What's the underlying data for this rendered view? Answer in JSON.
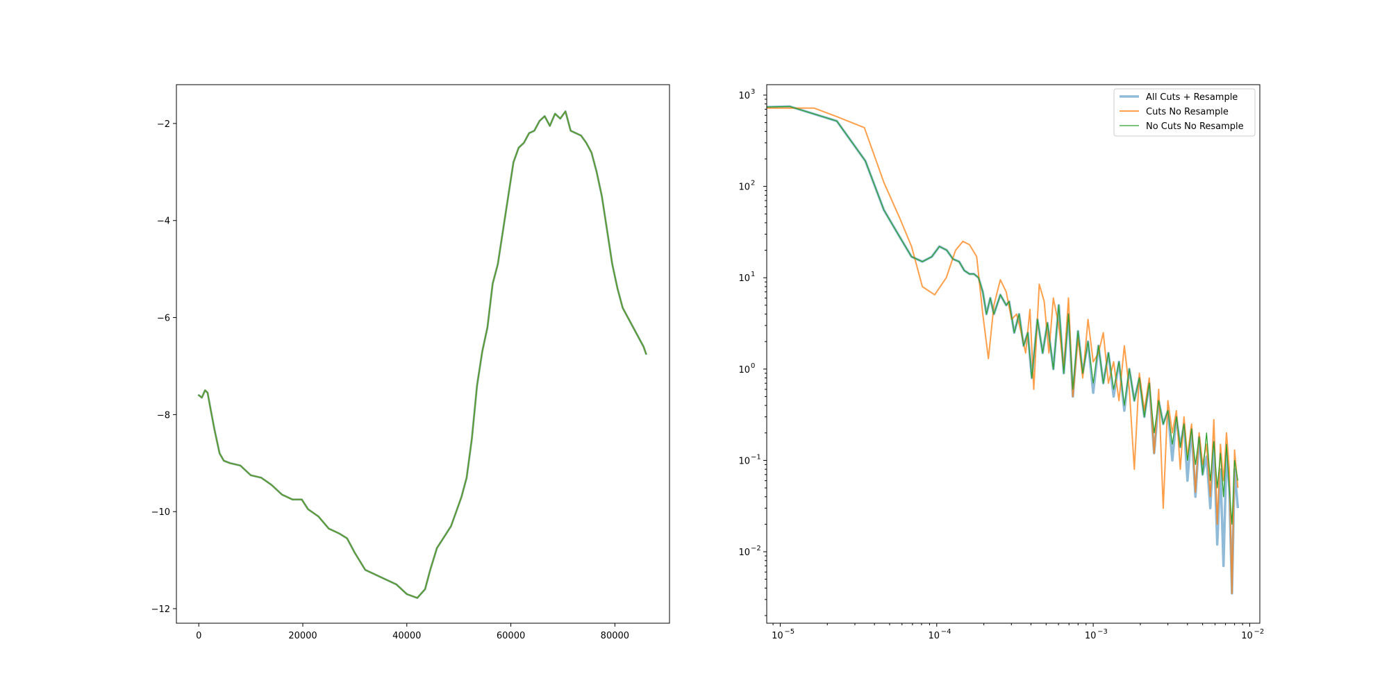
{
  "chart_data": [
    {
      "type": "line",
      "title": "",
      "xlabel": "",
      "ylabel": "",
      "xlim": [
        -4300,
        90500
      ],
      "ylim": [
        -12.3,
        -1.2
      ],
      "xticks": [
        0,
        20000,
        40000,
        60000,
        80000
      ],
      "xtick_labels": [
        "0",
        "20000",
        "40000",
        "60000",
        "80000"
      ],
      "yticks": [
        -12,
        -10,
        -8,
        -6,
        -4,
        -2
      ],
      "ytick_labels": [
        "−12",
        "−10",
        "−8",
        "−6",
        "−4",
        "−2"
      ],
      "grid": false,
      "series": [
        {
          "color": "#1f77b4",
          "alpha": 0.5,
          "linewidth": 3,
          "x": [
            0,
            600,
            1200,
            1700,
            2300,
            3000,
            4000,
            4800,
            6000,
            8000,
            10000,
            12000,
            14000,
            16000,
            18000,
            19800,
            21000,
            23000,
            25000,
            27000,
            28500,
            30000,
            32000,
            34000,
            36000,
            38000,
            40000,
            42000,
            43500,
            44500,
            45800,
            47000,
            48500,
            49500,
            50500,
            51500,
            52500,
            53500,
            54500,
            55500,
            56500,
            57500,
            58500,
            59500,
            60500,
            61500,
            62500,
            63500,
            64500,
            65500,
            66500,
            67500,
            68500,
            69500,
            70500,
            71500,
            72500,
            73500,
            74500,
            75500,
            76500,
            77500,
            78500,
            79500,
            80500,
            81500,
            82500,
            83500,
            84500,
            85500,
            86000
          ],
          "y": [
            -7.6,
            -7.65,
            -7.5,
            -7.55,
            -7.9,
            -8.3,
            -8.8,
            -8.95,
            -9.0,
            -9.05,
            -9.25,
            -9.3,
            -9.45,
            -9.65,
            -9.75,
            -9.75,
            -9.95,
            -10.1,
            -10.35,
            -10.45,
            -10.55,
            -10.85,
            -11.2,
            -11.3,
            -11.4,
            -11.5,
            -11.7,
            -11.78,
            -11.6,
            -11.2,
            -10.75,
            -10.55,
            -10.3,
            -10.0,
            -9.7,
            -9.3,
            -8.5,
            -7.4,
            -6.7,
            -6.2,
            -5.3,
            -4.9,
            -4.2,
            -3.5,
            -2.8,
            -2.5,
            -2.4,
            -2.2,
            -2.15,
            -1.95,
            -1.85,
            -2.05,
            -1.8,
            -1.9,
            -1.75,
            -2.15,
            -2.2,
            -2.25,
            -2.4,
            -2.6,
            -3.0,
            -3.5,
            -4.2,
            -4.9,
            -5.4,
            -5.8,
            -6.0,
            -6.2,
            -6.4,
            -6.6,
            -6.75
          ]
        },
        {
          "color": "#ff7f0e",
          "alpha": 0.75,
          "linewidth": 2,
          "x": [
            0,
            600,
            1200,
            1700,
            2300,
            3000,
            4000,
            4800,
            6000,
            8000,
            10000,
            12000,
            14000,
            16000,
            18000,
            19800,
            21000,
            23000,
            25000,
            27000,
            28500,
            30000,
            32000,
            34000,
            36000,
            38000,
            40000,
            42000,
            43500,
            44500,
            45800,
            47000,
            48500,
            49500,
            50500,
            51500,
            52500,
            53500,
            54500,
            55500,
            56500,
            57500,
            58500,
            59500,
            60500,
            61500,
            62500,
            63500,
            64500,
            65500,
            66500,
            67500,
            68500,
            69500,
            70500,
            71500,
            72500,
            73500,
            74500,
            75500,
            76500,
            77500,
            78500,
            79500,
            80500,
            81500,
            82500,
            83500,
            84500,
            85500,
            86000
          ],
          "y": [
            -7.6,
            -7.65,
            -7.5,
            -7.55,
            -7.9,
            -8.3,
            -8.8,
            -8.95,
            -9.0,
            -9.05,
            -9.25,
            -9.3,
            -9.45,
            -9.65,
            -9.75,
            -9.75,
            -9.95,
            -10.1,
            -10.35,
            -10.45,
            -10.55,
            -10.85,
            -11.2,
            -11.3,
            -11.4,
            -11.5,
            -11.7,
            -11.78,
            -11.6,
            -11.2,
            -10.75,
            -10.55,
            -10.3,
            -10.0,
            -9.7,
            -9.3,
            -8.5,
            -7.4,
            -6.7,
            -6.2,
            -5.3,
            -4.9,
            -4.2,
            -3.5,
            -2.8,
            -2.5,
            -2.4,
            -2.2,
            -2.15,
            -1.95,
            -1.85,
            -2.05,
            -1.8,
            -1.9,
            -1.75,
            -2.15,
            -2.2,
            -2.25,
            -2.4,
            -2.6,
            -3.0,
            -3.5,
            -4.2,
            -4.9,
            -5.4,
            -5.8,
            -6.0,
            -6.2,
            -6.4,
            -6.6,
            -6.75
          ]
        },
        {
          "color": "#2ca02c",
          "alpha": 0.75,
          "linewidth": 2,
          "x": [
            0,
            600,
            1200,
            1700,
            2300,
            3000,
            4000,
            4800,
            6000,
            8000,
            10000,
            12000,
            14000,
            16000,
            18000,
            19800,
            21000,
            23000,
            25000,
            27000,
            28500,
            30000,
            32000,
            34000,
            36000,
            38000,
            40000,
            42000,
            43500,
            44500,
            45800,
            47000,
            48500,
            49500,
            50500,
            51500,
            52500,
            53500,
            54500,
            55500,
            56500,
            57500,
            58500,
            59500,
            60500,
            61500,
            62500,
            63500,
            64500,
            65500,
            66500,
            67500,
            68500,
            69500,
            70500,
            71500,
            72500,
            73500,
            74500,
            75500,
            76500,
            77500,
            78500,
            79500,
            80500,
            81500,
            82500,
            83500,
            84500,
            85500,
            86000
          ],
          "y": [
            -7.6,
            -7.65,
            -7.5,
            -7.55,
            -7.9,
            -8.3,
            -8.8,
            -8.95,
            -9.0,
            -9.05,
            -9.25,
            -9.3,
            -9.45,
            -9.65,
            -9.75,
            -9.75,
            -9.95,
            -10.1,
            -10.35,
            -10.45,
            -10.55,
            -10.85,
            -11.2,
            -11.3,
            -11.4,
            -11.5,
            -11.7,
            -11.78,
            -11.6,
            -11.2,
            -10.75,
            -10.55,
            -10.3,
            -10.0,
            -9.7,
            -9.3,
            -8.5,
            -7.4,
            -6.7,
            -6.2,
            -5.3,
            -4.9,
            -4.2,
            -3.5,
            -2.8,
            -2.5,
            -2.4,
            -2.2,
            -2.15,
            -1.95,
            -1.85,
            -2.05,
            -1.8,
            -1.9,
            -1.75,
            -2.15,
            -2.2,
            -2.25,
            -2.4,
            -2.6,
            -3.0,
            -3.5,
            -4.2,
            -4.9,
            -5.4,
            -5.8,
            -6.0,
            -6.2,
            -6.4,
            -6.6,
            -6.75
          ]
        }
      ]
    },
    {
      "type": "line",
      "title": "",
      "xlabel": "",
      "ylabel": "",
      "xscale": "log",
      "yscale": "log",
      "xlim": [
        8.2e-06,
        0.0116
      ],
      "ylim": [
        0.00165,
        1300
      ],
      "xticks": [
        1e-05,
        0.0001,
        0.001,
        0.01
      ],
      "xtick_labels": [
        "10",
        "10",
        "10",
        "10"
      ],
      "xtick_exponents": [
        "−5",
        "−4",
        "−3",
        "−2"
      ],
      "yticks": [
        0.01,
        0.1,
        1,
        10,
        100,
        1000
      ],
      "ytick_labels": [
        "10",
        "10",
        "10",
        "10",
        "10",
        "10"
      ],
      "ytick_exponents": [
        "−2",
        "−1",
        "0",
        "1",
        "2",
        "3"
      ],
      "grid": false,
      "legend": {
        "location": "upper right",
        "entries": [
          "All Cuts + Resample",
          "Cuts No Resample",
          "No Cuts No Resample"
        ]
      },
      "series": [
        {
          "name": "All Cuts + Resample",
          "color": "#1f77b4",
          "alpha": 0.5,
          "linewidth": 3.5,
          "x": [
            8.2e-06,
            1.15e-05,
            2.3e-05,
            3.5e-05,
            4.6e-05,
            5.8e-05,
            6.9e-05,
            8.1e-05,
            9.3e-05,
            0.000104,
            0.000116,
            0.000127,
            0.000139,
            0.00015,
            0.000162,
            0.000173,
            0.000185,
            0.000197,
            0.000208,
            0.00022,
            0.000232,
            0.000255,
            0.000278,
            0.00029,
            0.000313,
            0.000336,
            0.000359,
            0.000382,
            0.000405,
            0.00044,
            0.000475,
            0.00051,
            0.000556,
            0.000602,
            0.000648,
            0.000695,
            0.000741,
            0.000799,
            0.000857,
            0.000926,
            0.001,
            0.00108,
            0.00116,
            0.00125,
            0.00135,
            0.00146,
            0.00158,
            0.0017,
            0.00183,
            0.00197,
            0.00212,
            0.00228,
            0.00245,
            0.00262,
            0.0028,
            0.003,
            0.0032,
            0.0034,
            0.0036,
            0.0038,
            0.004,
            0.00425,
            0.0045,
            0.00475,
            0.005,
            0.0053,
            0.0056,
            0.0059,
            0.0062,
            0.0065,
            0.0068,
            0.0071,
            0.0074,
            0.0077,
            0.008,
            0.0084
          ],
          "y": [
            740,
            750,
            520,
            190,
            55,
            28,
            17,
            15,
            17,
            22,
            20,
            16,
            15,
            12,
            11,
            11,
            10,
            7,
            4,
            6,
            4,
            6.5,
            5,
            5.5,
            2.5,
            4,
            1.8,
            2.5,
            0.8,
            3.5,
            1.5,
            3.2,
            1.0,
            5.0,
            0.9,
            4.0,
            0.5,
            2.6,
            0.9,
            2.0,
            0.55,
            1.8,
            0.7,
            1.5,
            0.5,
            1.2,
            0.35,
            1.0,
            0.45,
            0.8,
            0.3,
            0.7,
            0.12,
            0.45,
            0.25,
            0.35,
            0.1,
            0.3,
            0.14,
            0.25,
            0.06,
            0.22,
            0.04,
            0.18,
            0.07,
            0.11,
            0.03,
            0.16,
            0.012,
            0.08,
            0.007,
            0.12,
            0.05,
            0.0035,
            0.08,
            0.03
          ]
        },
        {
          "name": "Cuts No Resample",
          "color": "#ff7f0e",
          "alpha": 0.75,
          "linewidth": 2,
          "x": [
            8.2e-06,
            1.15e-05,
            1.65e-05,
            2.3e-05,
            3.45e-05,
            4.6e-05,
            5.8e-05,
            6.9e-05,
            8.1e-05,
            9.7e-05,
            0.000115,
            0.000132,
            0.000147,
            0.000162,
            0.00018,
            0.000197,
            0.000214,
            0.000232,
            0.000255,
            0.000278,
            0.000301,
            0.000324,
            0.000347,
            0.00037,
            0.000394,
            0.000417,
            0.000452,
            0.000486,
            0.000521,
            0.000556,
            0.000602,
            0.000648,
            0.000695,
            0.000741,
            0.000799,
            0.000857,
            0.000926,
            0.001,
            0.00108,
            0.00116,
            0.00125,
            0.00135,
            0.00146,
            0.00158,
            0.0017,
            0.00183,
            0.00197,
            0.00212,
            0.00228,
            0.00245,
            0.00262,
            0.0028,
            0.003,
            0.0032,
            0.0034,
            0.0036,
            0.0038,
            0.004,
            0.00425,
            0.0045,
            0.00475,
            0.005,
            0.0053,
            0.0056,
            0.0059,
            0.0062,
            0.0065,
            0.0068,
            0.0071,
            0.0074,
            0.0077,
            0.008,
            0.0084
          ],
          "y": [
            720,
            720,
            720,
            580,
            440,
            110,
            45,
            22,
            8,
            6.5,
            10,
            20,
            25,
            23,
            17,
            4,
            1.3,
            5,
            9.5,
            7,
            3.5,
            4,
            2.5,
            1.5,
            4.5,
            0.6,
            8.5,
            5.5,
            1.5,
            6,
            3,
            1.0,
            6,
            0.5,
            2.2,
            0.8,
            3.5,
            1.2,
            1.5,
            2.5,
            0.7,
            1.2,
            0.45,
            1.8,
            0.6,
            0.08,
            0.9,
            0.35,
            0.8,
            0.12,
            0.6,
            0.03,
            0.45,
            0.2,
            0.35,
            0.08,
            0.3,
            0.11,
            0.25,
            0.045,
            0.2,
            0.09,
            0.15,
            0.04,
            0.28,
            0.02,
            0.15,
            0.06,
            0.2,
            0.08,
            0.0035,
            0.13,
            0.05
          ]
        },
        {
          "name": "No Cuts No Resample",
          "color": "#2ca02c",
          "alpha": 1.0,
          "linewidth": 1.3,
          "x": [
            8.2e-06,
            1.15e-05,
            2.3e-05,
            3.5e-05,
            4.6e-05,
            5.8e-05,
            6.9e-05,
            8.1e-05,
            9.3e-05,
            0.000104,
            0.000116,
            0.000127,
            0.000139,
            0.00015,
            0.000162,
            0.000173,
            0.000185,
            0.000197,
            0.000208,
            0.00022,
            0.000232,
            0.000255,
            0.000278,
            0.00029,
            0.000313,
            0.000336,
            0.000359,
            0.000382,
            0.000405,
            0.00044,
            0.000475,
            0.00051,
            0.000556,
            0.000602,
            0.000648,
            0.000695,
            0.000741,
            0.000799,
            0.000857,
            0.000926,
            0.001,
            0.00108,
            0.00116,
            0.00125,
            0.00135,
            0.00146,
            0.00158,
            0.0017,
            0.00183,
            0.00197,
            0.00212,
            0.00228,
            0.00245,
            0.00262,
            0.0028,
            0.003,
            0.0032,
            0.0034,
            0.0036,
            0.0038,
            0.004,
            0.00425,
            0.0045,
            0.00475,
            0.005,
            0.0053,
            0.0056,
            0.0059,
            0.0062,
            0.0065,
            0.0068,
            0.0071,
            0.0074,
            0.0077,
            0.008,
            0.0084
          ],
          "y": [
            740,
            750,
            520,
            190,
            55,
            28,
            17,
            15,
            17,
            22,
            20,
            16,
            15,
            12,
            11,
            11,
            10,
            7,
            4,
            6,
            4,
            6.5,
            5,
            5.5,
            2.5,
            4,
            1.8,
            2.5,
            0.8,
            3.5,
            1.5,
            3.2,
            1.0,
            5.0,
            0.9,
            4.0,
            0.6,
            2.6,
            0.9,
            2.0,
            0.7,
            1.8,
            0.7,
            1.5,
            0.6,
            1.2,
            0.4,
            1.0,
            0.45,
            0.8,
            0.3,
            0.7,
            0.2,
            0.45,
            0.25,
            0.35,
            0.15,
            0.3,
            0.14,
            0.25,
            0.1,
            0.22,
            0.09,
            0.18,
            0.07,
            0.2,
            0.06,
            0.16,
            0.05,
            0.12,
            0.04,
            0.15,
            0.05,
            0.02,
            0.1,
            0.06
          ]
        }
      ]
    }
  ]
}
